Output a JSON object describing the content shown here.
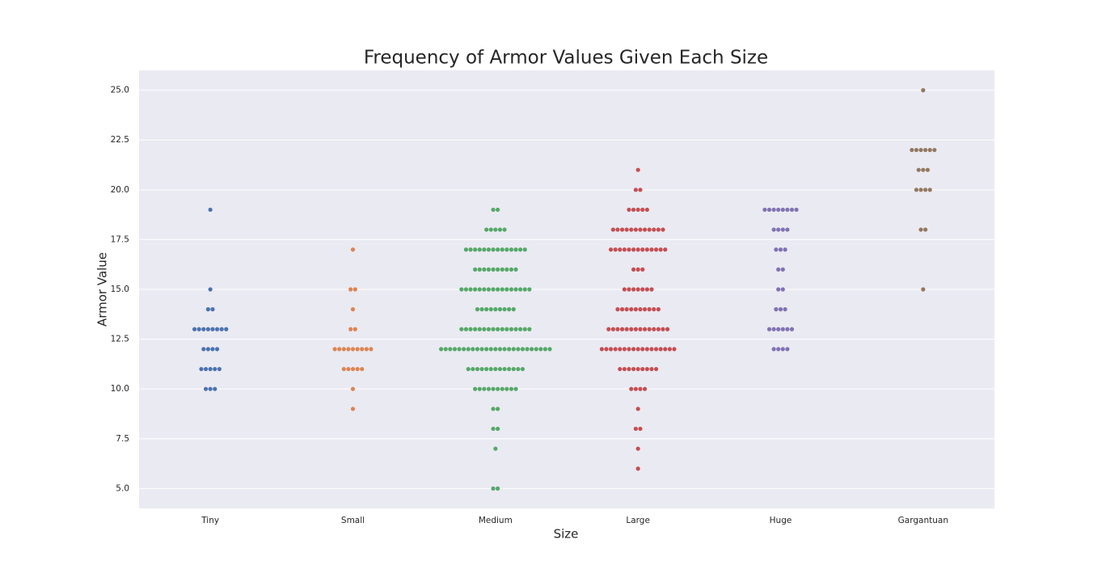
{
  "chart_data": {
    "type": "swarm",
    "title": "Frequency of Armor Values Given Each Size",
    "x_label": "Size",
    "y_label": "Armor Value",
    "categories": [
      "Tiny",
      "Small",
      "Medium",
      "Large",
      "Huge",
      "Gargantuan"
    ],
    "colors": [
      "#4c72b0",
      "#dd8452",
      "#55a868",
      "#c44e52",
      "#8172b3",
      "#937860"
    ],
    "values": [
      [
        19,
        15,
        14,
        14,
        13,
        13,
        13,
        13,
        13,
        13,
        13,
        13,
        12,
        12,
        12,
        12,
        11,
        11,
        11,
        11,
        11,
        10,
        10,
        10
      ],
      [
        17,
        15,
        15,
        14,
        13,
        13,
        12,
        12,
        12,
        12,
        12,
        12,
        12,
        12,
        12,
        11,
        11,
        11,
        11,
        11,
        10,
        9
      ],
      [
        19,
        19,
        18,
        18,
        18,
        18,
        18,
        17,
        17,
        17,
        17,
        17,
        17,
        17,
        17,
        17,
        17,
        17,
        17,
        17,
        17,
        16,
        16,
        16,
        16,
        16,
        16,
        16,
        16,
        16,
        16,
        15,
        15,
        15,
        15,
        15,
        15,
        15,
        15,
        15,
        15,
        15,
        15,
        15,
        15,
        15,
        15,
        14,
        14,
        14,
        14,
        14,
        14,
        14,
        14,
        14,
        13,
        13,
        13,
        13,
        13,
        13,
        13,
        13,
        13,
        13,
        13,
        13,
        13,
        13,
        13,
        13,
        12,
        12,
        12,
        12,
        12,
        12,
        12,
        12,
        12,
        12,
        12,
        12,
        12,
        12,
        12,
        12,
        12,
        12,
        12,
        12,
        12,
        12,
        12,
        12,
        12,
        11,
        11,
        11,
        11,
        11,
        11,
        11,
        11,
        11,
        11,
        11,
        11,
        11,
        10,
        10,
        10,
        10,
        10,
        10,
        10,
        10,
        10,
        10,
        9,
        9,
        8,
        8,
        7,
        5,
        5
      ],
      [
        21,
        20,
        20,
        19,
        19,
        19,
        19,
        19,
        18,
        18,
        18,
        18,
        18,
        18,
        18,
        18,
        18,
        18,
        18,
        18,
        17,
        17,
        17,
        17,
        17,
        17,
        17,
        17,
        17,
        17,
        17,
        17,
        17,
        16,
        16,
        16,
        15,
        15,
        15,
        15,
        15,
        15,
        15,
        14,
        14,
        14,
        14,
        14,
        14,
        14,
        14,
        14,
        14,
        13,
        13,
        13,
        13,
        13,
        13,
        13,
        13,
        13,
        13,
        13,
        13,
        13,
        13,
        12,
        12,
        12,
        12,
        12,
        12,
        12,
        12,
        12,
        12,
        12,
        12,
        12,
        12,
        12,
        12,
        12,
        11,
        11,
        11,
        11,
        11,
        11,
        11,
        11,
        11,
        10,
        10,
        10,
        10,
        9,
        8,
        8,
        7,
        6
      ],
      [
        19,
        19,
        19,
        19,
        19,
        19,
        19,
        19,
        18,
        18,
        18,
        18,
        17,
        17,
        17,
        16,
        16,
        15,
        15,
        14,
        14,
        14,
        13,
        13,
        13,
        13,
        13,
        13,
        12,
        12,
        12,
        12
      ],
      [
        25,
        22,
        22,
        22,
        22,
        22,
        22,
        21,
        21,
        21,
        20,
        20,
        20,
        20,
        18,
        18,
        15
      ]
    ],
    "ylim": [
      4,
      26
    ],
    "yticks": [
      {
        "value": 5,
        "label": "5.0"
      },
      7.5,
      {
        "value": 10,
        "label": "10.0"
      },
      12.5,
      {
        "value": 15,
        "label": "15.0"
      },
      17.5,
      {
        "value": 20,
        "label": "20.0"
      },
      22.5,
      {
        "value": 25,
        "label": "25.0"
      }
    ],
    "grid": true
  }
}
